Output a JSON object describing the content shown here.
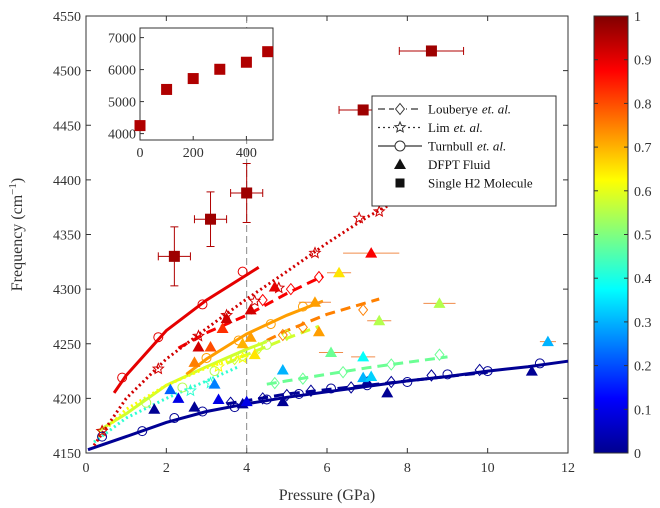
{
  "chart_data": {
    "type": "scatter",
    "xlabel": "Pressure (GPa)",
    "ylabel": "Frequency (cm",
    "ylabel_sup": "−1",
    "ylabel_end": ")",
    "xlim": [
      0,
      12
    ],
    "ylim": [
      4150,
      4550
    ],
    "x_ticks": [
      0,
      2,
      4,
      6,
      8,
      10,
      12
    ],
    "y_ticks": [
      4150,
      4200,
      4250,
      4300,
      4350,
      4400,
      4450,
      4500,
      4550
    ],
    "grid": false,
    "vertical_reference_x": 4,
    "colormap": "jet",
    "colorbar": {
      "range": [
        0,
        1
      ],
      "ticks": [
        "0",
        "0.1",
        "0.2",
        "0.3",
        "0.4",
        "0.5",
        "0.6",
        "0.7",
        "0.8",
        "0.9",
        "1"
      ]
    },
    "legend": {
      "placement": "right",
      "entries": [
        {
          "marker": "diamond",
          "line": "dashed",
          "label": "Louberye",
          "etal": "et. al."
        },
        {
          "marker": "star",
          "line": "dotted",
          "label": "Lim",
          "etal": "et. al."
        },
        {
          "marker": "circle",
          "line": "solid",
          "label": "Turnbull",
          "etal": "et. al."
        },
        {
          "marker": "triangle",
          "line": "none",
          "label": "DFPT Fluid",
          "etal": ""
        },
        {
          "marker": "square",
          "line": "none",
          "label": "Single H2 Molecule",
          "etal": ""
        }
      ]
    },
    "turnbull_curves": [
      {
        "c": 0.02,
        "x": [
          0.05,
          1,
          2,
          3,
          4,
          5,
          6,
          7,
          8,
          9,
          10,
          11,
          12
        ],
        "y": [
          4153,
          4165,
          4178,
          4188,
          4195,
          4201,
          4206,
          4211,
          4216,
          4220,
          4225,
          4229,
          4234
        ]
      },
      {
        "c": 0.58,
        "x": [
          0.3,
          1,
          2,
          3,
          4,
          4.5
        ],
        "y": [
          4170,
          4186,
          4212,
          4229,
          4245,
          4252
        ]
      },
      {
        "c": 0.72,
        "x": [
          2.5,
          3,
          4,
          5,
          5.9
        ],
        "y": [
          4222,
          4236,
          4259,
          4276,
          4289
        ]
      },
      {
        "c": 0.9,
        "x": [
          0.7,
          1,
          2,
          3,
          4,
          4.3
        ],
        "y": [
          4205,
          4221,
          4262,
          4290,
          4313,
          4320
        ]
      }
    ],
    "turnbull_points": [
      {
        "c": 0.02,
        "x": [
          0.4,
          1.4,
          2.2,
          2.9,
          3.7,
          4.5,
          5.3,
          6.1,
          7.0,
          8.0,
          9.0,
          10.0,
          11.3
        ],
        "y": [
          4165,
          4170,
          4182,
          4188,
          4192,
          4199,
          4204,
          4209,
          4212,
          4215,
          4222,
          4225,
          4232
        ]
      },
      {
        "c": 0.55,
        "x": [
          1.5,
          2.4,
          3.2,
          3.9,
          4.5
        ],
        "y": [
          4196,
          4210,
          4225,
          4239,
          4249
        ]
      },
      {
        "c": 0.72,
        "x": [
          3.0,
          3.8,
          4.6,
          5.4
        ],
        "y": [
          4237,
          4253,
          4268,
          4284
        ]
      },
      {
        "c": 0.9,
        "x": [
          0.9,
          1.8,
          2.9,
          3.9
        ],
        "y": [
          4219,
          4256,
          4286,
          4316
        ]
      }
    ],
    "louberye_curves": [
      {
        "c": 0.02,
        "x": [
          3.5,
          4,
          5,
          6,
          7,
          8,
          9,
          10
        ],
        "y": [
          4195,
          4198,
          4204,
          4208,
          4212,
          4216,
          4220,
          4224
        ]
      },
      {
        "c": 0.48,
        "x": [
          4.5,
          5,
          6,
          7,
          8,
          9
        ],
        "y": [
          4213,
          4216,
          4222,
          4228,
          4233,
          4238
        ]
      },
      {
        "c": 0.58,
        "x": [
          3.5,
          4,
          5,
          5.8
        ],
        "y": [
          4232,
          4240,
          4255,
          4266
        ]
      },
      {
        "c": 0.75,
        "x": [
          4.5,
          5,
          6,
          7.3
        ],
        "y": [
          4253,
          4262,
          4277,
          4291
        ]
      },
      {
        "c": 0.88,
        "x": [
          2.3,
          3,
          4,
          5,
          5.9
        ],
        "y": [
          4246,
          4260,
          4276,
          4296,
          4312
        ]
      }
    ],
    "louberye_points": [
      {
        "c": 0.02,
        "x": [
          3.6,
          4.4,
          5.0,
          5.6,
          6.6,
          7.6,
          8.6,
          9.8
        ],
        "y": [
          4196,
          4200,
          4203,
          4207,
          4210,
          4215,
          4221,
          4226
        ]
      },
      {
        "c": 0.48,
        "x": [
          4.7,
          5.4,
          6.4,
          7.6,
          8.8
        ],
        "y": [
          4214,
          4218,
          4224,
          4231,
          4240
        ]
      },
      {
        "c": 0.58,
        "x": [
          3.7,
          4.3,
          5.0
        ],
        "y": [
          4236,
          4246,
          4258
        ]
      },
      {
        "c": 0.75,
        "x": [
          4.9,
          5.4,
          6.9
        ],
        "y": [
          4258,
          4265,
          4281
        ]
      },
      {
        "c": 0.88,
        "x": [
          4.4,
          5.1,
          5.8
        ],
        "y": [
          4290,
          4300,
          4311
        ]
      }
    ],
    "lim_curves": [
      {
        "c": 0.42,
        "x": [
          0.2,
          1,
          2,
          3,
          3.8
        ],
        "y": [
          4160,
          4182,
          4200,
          4216,
          4229
        ]
      },
      {
        "c": 0.62,
        "x": [
          0.3,
          1,
          2,
          3,
          4
        ],
        "y": [
          4165,
          4190,
          4212,
          4228,
          4240
        ]
      },
      {
        "c": 0.92,
        "x": [
          0.2,
          1,
          2,
          3,
          4,
          5,
          6,
          7,
          8.3
        ],
        "y": [
          4157,
          4200,
          4236,
          4264,
          4291,
          4316,
          4342,
          4366,
          4392
        ]
      }
    ],
    "lim_points": [
      {
        "c": 0.42,
        "x": [
          2.6,
          3.1
        ],
        "y": [
          4207,
          4214
        ]
      },
      {
        "c": 0.62,
        "x": [
          3.3,
          3.9
        ],
        "y": [
          4229,
          4237
        ]
      },
      {
        "c": 0.92,
        "x": [
          0.4,
          1.8,
          2.8,
          3.5,
          4.2,
          4.8,
          5.7,
          6.8,
          7.3
        ],
        "y": [
          4170,
          4227,
          4257,
          4276,
          4289,
          4301,
          4333,
          4365,
          4371
        ]
      }
    ],
    "dfpt_fluid": [
      {
        "x": 1.7,
        "y": 4190,
        "c": 0.02
      },
      {
        "x": 2.7,
        "y": 4192,
        "c": 0.02
      },
      {
        "x": 3.9,
        "y": 4195,
        "c": 0.02
      },
      {
        "x": 4.9,
        "y": 4197,
        "c": 0.02
      },
      {
        "x": 7.0,
        "y": 4215,
        "c": 0.02
      },
      {
        "x": 7.5,
        "y": 4205,
        "c": 0.02
      },
      {
        "x": 11.1,
        "y": 4225,
        "c": 0.02
      },
      {
        "x": 2.3,
        "y": 4200,
        "c": 0.1
      },
      {
        "x": 3.3,
        "y": 4199,
        "c": 0.1
      },
      {
        "x": 4.0,
        "y": 4197,
        "c": 0.1
      },
      {
        "x": 2.1,
        "y": 4208,
        "c": 0.22
      },
      {
        "x": 3.2,
        "y": 4213,
        "c": 0.25
      },
      {
        "x": 4.9,
        "y": 4226,
        "c": 0.3
      },
      {
        "x": 6.9,
        "y": 4219,
        "c": 0.3
      },
      {
        "x": 7.1,
        "y": 4220,
        "c": 0.33
      },
      {
        "x": 11.5,
        "y": 4252,
        "c": 0.3
      },
      {
        "x": 6.9,
        "y": 4238,
        "c": 0.38
      },
      {
        "x": 6.1,
        "y": 4242,
        "c": 0.48
      },
      {
        "x": 7.3,
        "y": 4271,
        "c": 0.55
      },
      {
        "x": 8.8,
        "y": 4287,
        "c": 0.55
      },
      {
        "x": 4.2,
        "y": 4240,
        "c": 0.65
      },
      {
        "x": 3.9,
        "y": 4250,
        "c": 0.7
      },
      {
        "x": 5.8,
        "y": 4261,
        "c": 0.72
      },
      {
        "x": 6.3,
        "y": 4315,
        "c": 0.65
      },
      {
        "x": 5.7,
        "y": 4288,
        "c": 0.72
      },
      {
        "x": 4.1,
        "y": 4256,
        "c": 0.72
      },
      {
        "x": 2.7,
        "y": 4233,
        "c": 0.75
      },
      {
        "x": 3.1,
        "y": 4247,
        "c": 0.8
      },
      {
        "x": 3.4,
        "y": 4264,
        "c": 0.83
      },
      {
        "x": 2.8,
        "y": 4247,
        "c": 0.92
      },
      {
        "x": 3.5,
        "y": 4273,
        "c": 0.92
      },
      {
        "x": 4.1,
        "y": 4281,
        "c": 0.92
      },
      {
        "x": 4.7,
        "y": 4302,
        "c": 0.9
      },
      {
        "x": 7.1,
        "y": 4333,
        "c": 0.88
      }
    ],
    "dfpt_xerr": [
      {
        "x": 5.7,
        "y": 4288,
        "e": 0.4
      },
      {
        "x": 7.1,
        "y": 4333,
        "e": 0.7
      },
      {
        "x": 6.3,
        "y": 4315,
        "e": 0.3
      },
      {
        "x": 8.8,
        "y": 4287,
        "e": 0.4
      },
      {
        "x": 7.3,
        "y": 4271,
        "e": 0.3
      },
      {
        "x": 6.1,
        "y": 4242,
        "e": 0.3
      },
      {
        "x": 6.9,
        "y": 4238,
        "e": 0.3
      },
      {
        "x": 11.5,
        "y": 4252,
        "e": 0.2
      }
    ],
    "single_h2_molecule": [
      {
        "x": 2.2,
        "y": 4330,
        "c": 0.97,
        "xerr": 0.4,
        "yerr": 27
      },
      {
        "x": 3.1,
        "y": 4364,
        "c": 0.97,
        "xerr": 0.4,
        "yerr": 25
      },
      {
        "x": 4.0,
        "y": 4388,
        "c": 0.97,
        "xerr": 0.4,
        "yerr": 27
      },
      {
        "x": 6.9,
        "y": 4464,
        "c": 0.97,
        "xerr": 0.6,
        "yerr": 0
      },
      {
        "x": 8.6,
        "y": 4518,
        "c": 0.97,
        "xerr": 0.8,
        "yerr": 0
      }
    ],
    "inset": {
      "x_ticks": [
        0,
        200,
        400
      ],
      "y_ticks": [
        4000,
        5000,
        6000,
        7000
      ],
      "xlim": [
        0,
        500
      ],
      "ylim": [
        3800,
        7300
      ],
      "points": [
        {
          "x": 0,
          "y": 4250
        },
        {
          "x": 100,
          "y": 5380
        },
        {
          "x": 200,
          "y": 5720
        },
        {
          "x": 300,
          "y": 6010
        },
        {
          "x": 400,
          "y": 6230
        },
        {
          "x": 480,
          "y": 6560
        }
      ]
    }
  }
}
